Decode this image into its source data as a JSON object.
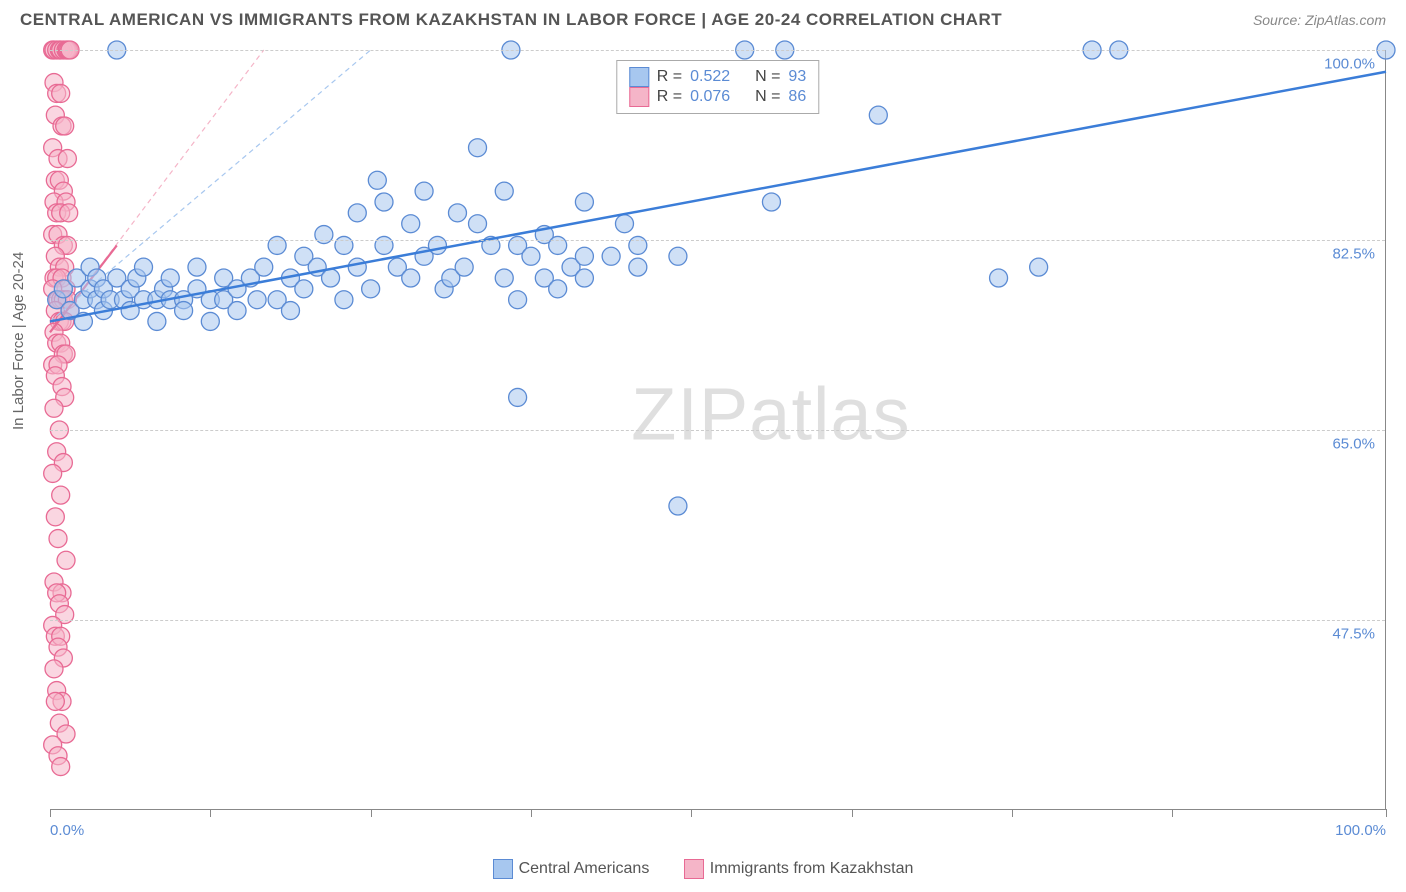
{
  "header": {
    "title": "CENTRAL AMERICAN VS IMMIGRANTS FROM KAZAKHSTAN IN LABOR FORCE | AGE 20-24 CORRELATION CHART",
    "source": "Source: ZipAtlas.com"
  },
  "chart": {
    "type": "scatter",
    "y_axis_label": "In Labor Force | Age 20-24",
    "background_color": "#ffffff",
    "watermark": {
      "part1": "ZIP",
      "part2": "atlas"
    },
    "xlim": [
      0,
      100
    ],
    "ylim": [
      30,
      100
    ],
    "x_ticks": [
      0,
      12,
      24,
      36,
      48,
      60,
      72,
      84,
      100
    ],
    "x_tick_labels": {
      "first": "0.0%",
      "last": "100.0%"
    },
    "y_gridlines": [
      47.5,
      65.0,
      82.5,
      100.0
    ],
    "y_tick_labels": [
      "47.5%",
      "65.0%",
      "82.5%",
      "100.0%"
    ],
    "grid_color": "#cccccc",
    "series": {
      "blue": {
        "label": "Central Americans",
        "fill": "#a7c7ef",
        "stroke": "#5b8bd4",
        "fill_opacity": 0.55,
        "marker_radius": 9,
        "R": "0.522",
        "N": "93",
        "trend": {
          "x1": 0,
          "y1": 75,
          "x2": 100,
          "y2": 98,
          "color": "#3b7dd8",
          "width": 2.5,
          "dash": "none"
        },
        "guide": {
          "x1": 0,
          "y1": 75,
          "x2": 24,
          "y2": 100,
          "color": "#a7c7ef",
          "width": 1.2,
          "dash": "5,4"
        },
        "points": [
          [
            0.5,
            77
          ],
          [
            1,
            78
          ],
          [
            1.5,
            76
          ],
          [
            2,
            79
          ],
          [
            2.5,
            77
          ],
          [
            2.5,
            75
          ],
          [
            3,
            78
          ],
          [
            3,
            80
          ],
          [
            3.5,
            77
          ],
          [
            3.5,
            79
          ],
          [
            4,
            76
          ],
          [
            4,
            78
          ],
          [
            4.5,
            77
          ],
          [
            5,
            79
          ],
          [
            5,
            100
          ],
          [
            5.5,
            77
          ],
          [
            6,
            78
          ],
          [
            6,
            76
          ],
          [
            6.5,
            79
          ],
          [
            7,
            77
          ],
          [
            7,
            80
          ],
          [
            8,
            77
          ],
          [
            8,
            75
          ],
          [
            8.5,
            78
          ],
          [
            9,
            77
          ],
          [
            9,
            79
          ],
          [
            10,
            77
          ],
          [
            10,
            76
          ],
          [
            11,
            78
          ],
          [
            11,
            80
          ],
          [
            12,
            77
          ],
          [
            12,
            75
          ],
          [
            13,
            79
          ],
          [
            13,
            77
          ],
          [
            14,
            76
          ],
          [
            14,
            78
          ],
          [
            15,
            79
          ],
          [
            15.5,
            77
          ],
          [
            16,
            80
          ],
          [
            17,
            77
          ],
          [
            17,
            82
          ],
          [
            18,
            79
          ],
          [
            18,
            76
          ],
          [
            19,
            81
          ],
          [
            19,
            78
          ],
          [
            20,
            80
          ],
          [
            20.5,
            83
          ],
          [
            21,
            79
          ],
          [
            22,
            77
          ],
          [
            22,
            82
          ],
          [
            23,
            80
          ],
          [
            23,
            85
          ],
          [
            24,
            78
          ],
          [
            24.5,
            88
          ],
          [
            25,
            82
          ],
          [
            25,
            86
          ],
          [
            26,
            80
          ],
          [
            27,
            79
          ],
          [
            27,
            84
          ],
          [
            28,
            81
          ],
          [
            28,
            87
          ],
          [
            29,
            82
          ],
          [
            29.5,
            78
          ],
          [
            30,
            79
          ],
          [
            30.5,
            85
          ],
          [
            31,
            80
          ],
          [
            32,
            84
          ],
          [
            32,
            91
          ],
          [
            33,
            82
          ],
          [
            34,
            79
          ],
          [
            34,
            87
          ],
          [
            34.5,
            100
          ],
          [
            35,
            82
          ],
          [
            35,
            77
          ],
          [
            35,
            68
          ],
          [
            36,
            81
          ],
          [
            37,
            83
          ],
          [
            37,
            79
          ],
          [
            38,
            82
          ],
          [
            38,
            78
          ],
          [
            39,
            80
          ],
          [
            40,
            81
          ],
          [
            40,
            79
          ],
          [
            40,
            86
          ],
          [
            42,
            81
          ],
          [
            43,
            84
          ],
          [
            44,
            80
          ],
          [
            44,
            82
          ],
          [
            47,
            58
          ],
          [
            47,
            81
          ],
          [
            52,
            100
          ],
          [
            54,
            86
          ],
          [
            55,
            100
          ],
          [
            62,
            94
          ],
          [
            71,
            79
          ],
          [
            74,
            80
          ],
          [
            80,
            100
          ],
          [
            78,
            100
          ],
          [
            100,
            100
          ]
        ]
      },
      "pink": {
        "label": "Immigrants from Kazakhstan",
        "fill": "#f5b5c8",
        "stroke": "#e86a94",
        "fill_opacity": 0.55,
        "marker_radius": 9,
        "R": "0.076",
        "N": "86",
        "trend": {
          "x1": 0,
          "y1": 74,
          "x2": 5,
          "y2": 82,
          "color": "#e86a94",
          "width": 2.2,
          "dash": "none"
        },
        "guide": {
          "x1": 0,
          "y1": 74,
          "x2": 16,
          "y2": 100,
          "color": "#f5b5c8",
          "width": 1.2,
          "dash": "5,4"
        },
        "points": [
          [
            0.2,
            100
          ],
          [
            0.3,
            100
          ],
          [
            0.5,
            100
          ],
          [
            0.7,
            100
          ],
          [
            0.8,
            100
          ],
          [
            1,
            100
          ],
          [
            1.2,
            100
          ],
          [
            1.3,
            100
          ],
          [
            1.4,
            100
          ],
          [
            1.5,
            100
          ],
          [
            0.3,
            97
          ],
          [
            0.5,
            96
          ],
          [
            0.8,
            96
          ],
          [
            0.4,
            94
          ],
          [
            0.9,
            93
          ],
          [
            1.1,
            93
          ],
          [
            0.2,
            91
          ],
          [
            0.6,
            90
          ],
          [
            1.3,
            90
          ],
          [
            0.4,
            88
          ],
          [
            0.7,
            88
          ],
          [
            1.0,
            87
          ],
          [
            0.3,
            86
          ],
          [
            1.2,
            86
          ],
          [
            0.5,
            85
          ],
          [
            0.8,
            85
          ],
          [
            1.4,
            85
          ],
          [
            0.2,
            83
          ],
          [
            0.6,
            83
          ],
          [
            1.0,
            82
          ],
          [
            1.3,
            82
          ],
          [
            0.4,
            81
          ],
          [
            0.7,
            80
          ],
          [
            1.1,
            80
          ],
          [
            0.3,
            79
          ],
          [
            0.5,
            79
          ],
          [
            0.9,
            79
          ],
          [
            1.2,
            78
          ],
          [
            0.2,
            78
          ],
          [
            0.6,
            77
          ],
          [
            0.8,
            77
          ],
          [
            1.0,
            77
          ],
          [
            1.3,
            77
          ],
          [
            1.5,
            76
          ],
          [
            0.4,
            76
          ],
          [
            0.7,
            75
          ],
          [
            0.9,
            75
          ],
          [
            1.1,
            75
          ],
          [
            0.3,
            74
          ],
          [
            0.5,
            73
          ],
          [
            0.8,
            73
          ],
          [
            1.0,
            72
          ],
          [
            1.2,
            72
          ],
          [
            0.2,
            71
          ],
          [
            0.6,
            71
          ],
          [
            0.4,
            70
          ],
          [
            0.9,
            69
          ],
          [
            1.1,
            68
          ],
          [
            0.3,
            67
          ],
          [
            0.7,
            65
          ],
          [
            0.5,
            63
          ],
          [
            1.0,
            62
          ],
          [
            0.2,
            61
          ],
          [
            0.8,
            59
          ],
          [
            0.4,
            57
          ],
          [
            0.6,
            55
          ],
          [
            1.2,
            53
          ],
          [
            0.3,
            51
          ],
          [
            0.9,
            50
          ],
          [
            0.5,
            50
          ],
          [
            0.7,
            49
          ],
          [
            1.1,
            48
          ],
          [
            0.2,
            47
          ],
          [
            0.4,
            46
          ],
          [
            0.8,
            46
          ],
          [
            0.6,
            45
          ],
          [
            1.0,
            44
          ],
          [
            0.3,
            43
          ],
          [
            0.5,
            41
          ],
          [
            0.9,
            40
          ],
          [
            0.4,
            40
          ],
          [
            0.7,
            38
          ],
          [
            1.2,
            37
          ],
          [
            0.2,
            36
          ],
          [
            0.6,
            35
          ],
          [
            0.8,
            34
          ]
        ]
      }
    },
    "legend_top": {
      "R_label": "R =",
      "N_label": "N ="
    }
  }
}
